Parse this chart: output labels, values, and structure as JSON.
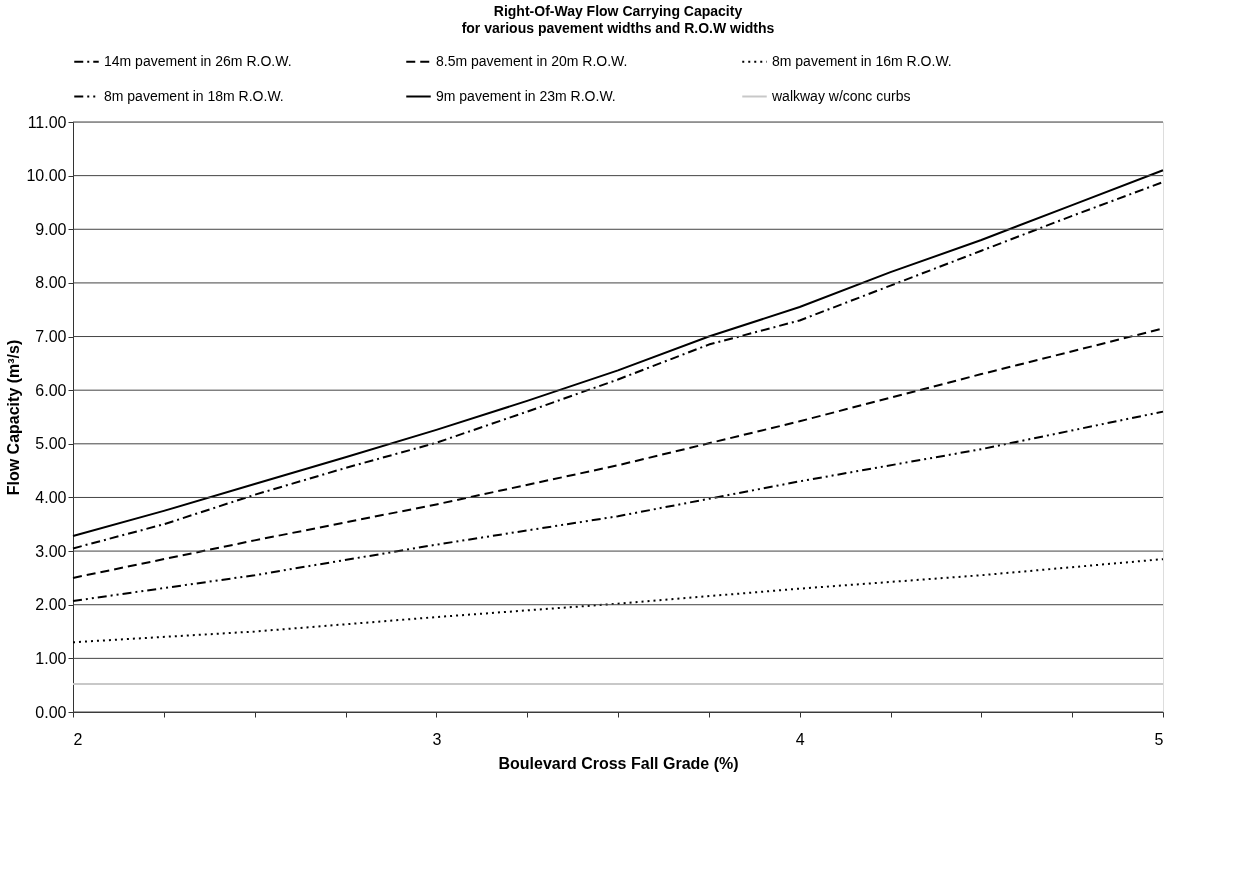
{
  "chart_data": {
    "type": "line",
    "title": "Right-Of-Way Flow Carrying Capacity",
    "subtitle": "for various pavement widths and R.O.W widths",
    "xlabel": "Boulevard Cross Fall Grade (%)",
    "ylabel": "Flow Capacity (m³/s)",
    "series": [
      {
        "name": "14m pavement in 26m R.O.W.",
        "color": "#000000",
        "line_style": "dashdot",
        "x": [
          2,
          2.25,
          2.5,
          2.75,
          3,
          3.25,
          3.5,
          3.75,
          4,
          4.25,
          4.5,
          4.75,
          5
        ],
        "values": [
          3.05,
          3.5,
          4.05,
          4.55,
          5.02,
          5.6,
          6.2,
          6.85,
          7.3,
          7.95,
          8.6,
          9.25,
          9.88
        ]
      },
      {
        "name": "8.5m pavement in 20m R.O.W.",
        "color": "#000000",
        "line_style": "dashed",
        "x": [
          2,
          2.5,
          3,
          3.5,
          4,
          4.5,
          5
        ],
        "values": [
          2.5,
          3.2,
          3.87,
          4.6,
          5.42,
          6.3,
          7.15
        ]
      },
      {
        "name": "8m pavement in 16m R.O.W.",
        "color": "#000000",
        "line_style": "dotted",
        "x": [
          2,
          2.5,
          3,
          3.5,
          4,
          4.5,
          5
        ],
        "values": [
          1.3,
          1.5,
          1.77,
          2.02,
          2.3,
          2.55,
          2.85
        ]
      },
      {
        "name": "8m pavement in 18m R.O.W.",
        "color": "#000000",
        "line_style": "dashdotdot",
        "x": [
          2,
          2.5,
          3,
          3.5,
          4,
          4.5,
          5
        ],
        "values": [
          2.07,
          2.55,
          3.12,
          3.65,
          4.3,
          4.9,
          5.6
        ]
      },
      {
        "name": "9m pavement in 23m R.O.W.",
        "color": "#000000",
        "line_style": "solid",
        "x": [
          2,
          2.25,
          2.5,
          2.75,
          3,
          3.25,
          3.5,
          3.75,
          4,
          4.25,
          4.5,
          4.75,
          5
        ],
        "values": [
          3.28,
          3.75,
          4.25,
          4.75,
          5.26,
          5.8,
          6.37,
          7.0,
          7.55,
          8.2,
          8.8,
          9.45,
          10.1
        ]
      },
      {
        "name": "walkway w/conc curbs",
        "color": "#c8c8c8",
        "line_style": "solid",
        "x": [
          2,
          5
        ],
        "values": [
          0.52,
          0.52
        ]
      }
    ],
    "xlim": [
      2,
      5
    ],
    "ylim": [
      0,
      11
    ],
    "xticks": [
      2,
      {
        "value": 2.25,
        "label": null
      },
      {
        "value": 2.5,
        "label": null
      },
      {
        "value": 2.75,
        "label": null
      },
      3,
      {
        "value": 3.25,
        "label": null
      },
      {
        "value": 3.5,
        "label": null
      },
      {
        "value": 3.75,
        "label": null
      },
      4,
      {
        "value": 4.25,
        "label": null
      },
      {
        "value": 4.5,
        "label": null
      },
      {
        "value": 4.75,
        "label": null
      },
      5
    ],
    "yticks": [
      {
        "value": 0,
        "label": "0.00"
      },
      {
        "value": 1,
        "label": "1.00"
      },
      {
        "value": 2,
        "label": "2.00"
      },
      {
        "value": 3,
        "label": "3.00"
      },
      {
        "value": 4,
        "label": "4.00"
      },
      {
        "value": 5,
        "label": "5.00"
      },
      {
        "value": 6,
        "label": "6.00"
      },
      {
        "value": 7,
        "label": "7.00"
      },
      {
        "value": 8,
        "label": "8.00"
      },
      {
        "value": 9,
        "label": "9.00"
      },
      {
        "value": 10,
        "label": "10.00"
      },
      {
        "value": 11,
        "label": "11.00"
      }
    ],
    "grid": "y",
    "legend": "top",
    "marker": "none"
  }
}
